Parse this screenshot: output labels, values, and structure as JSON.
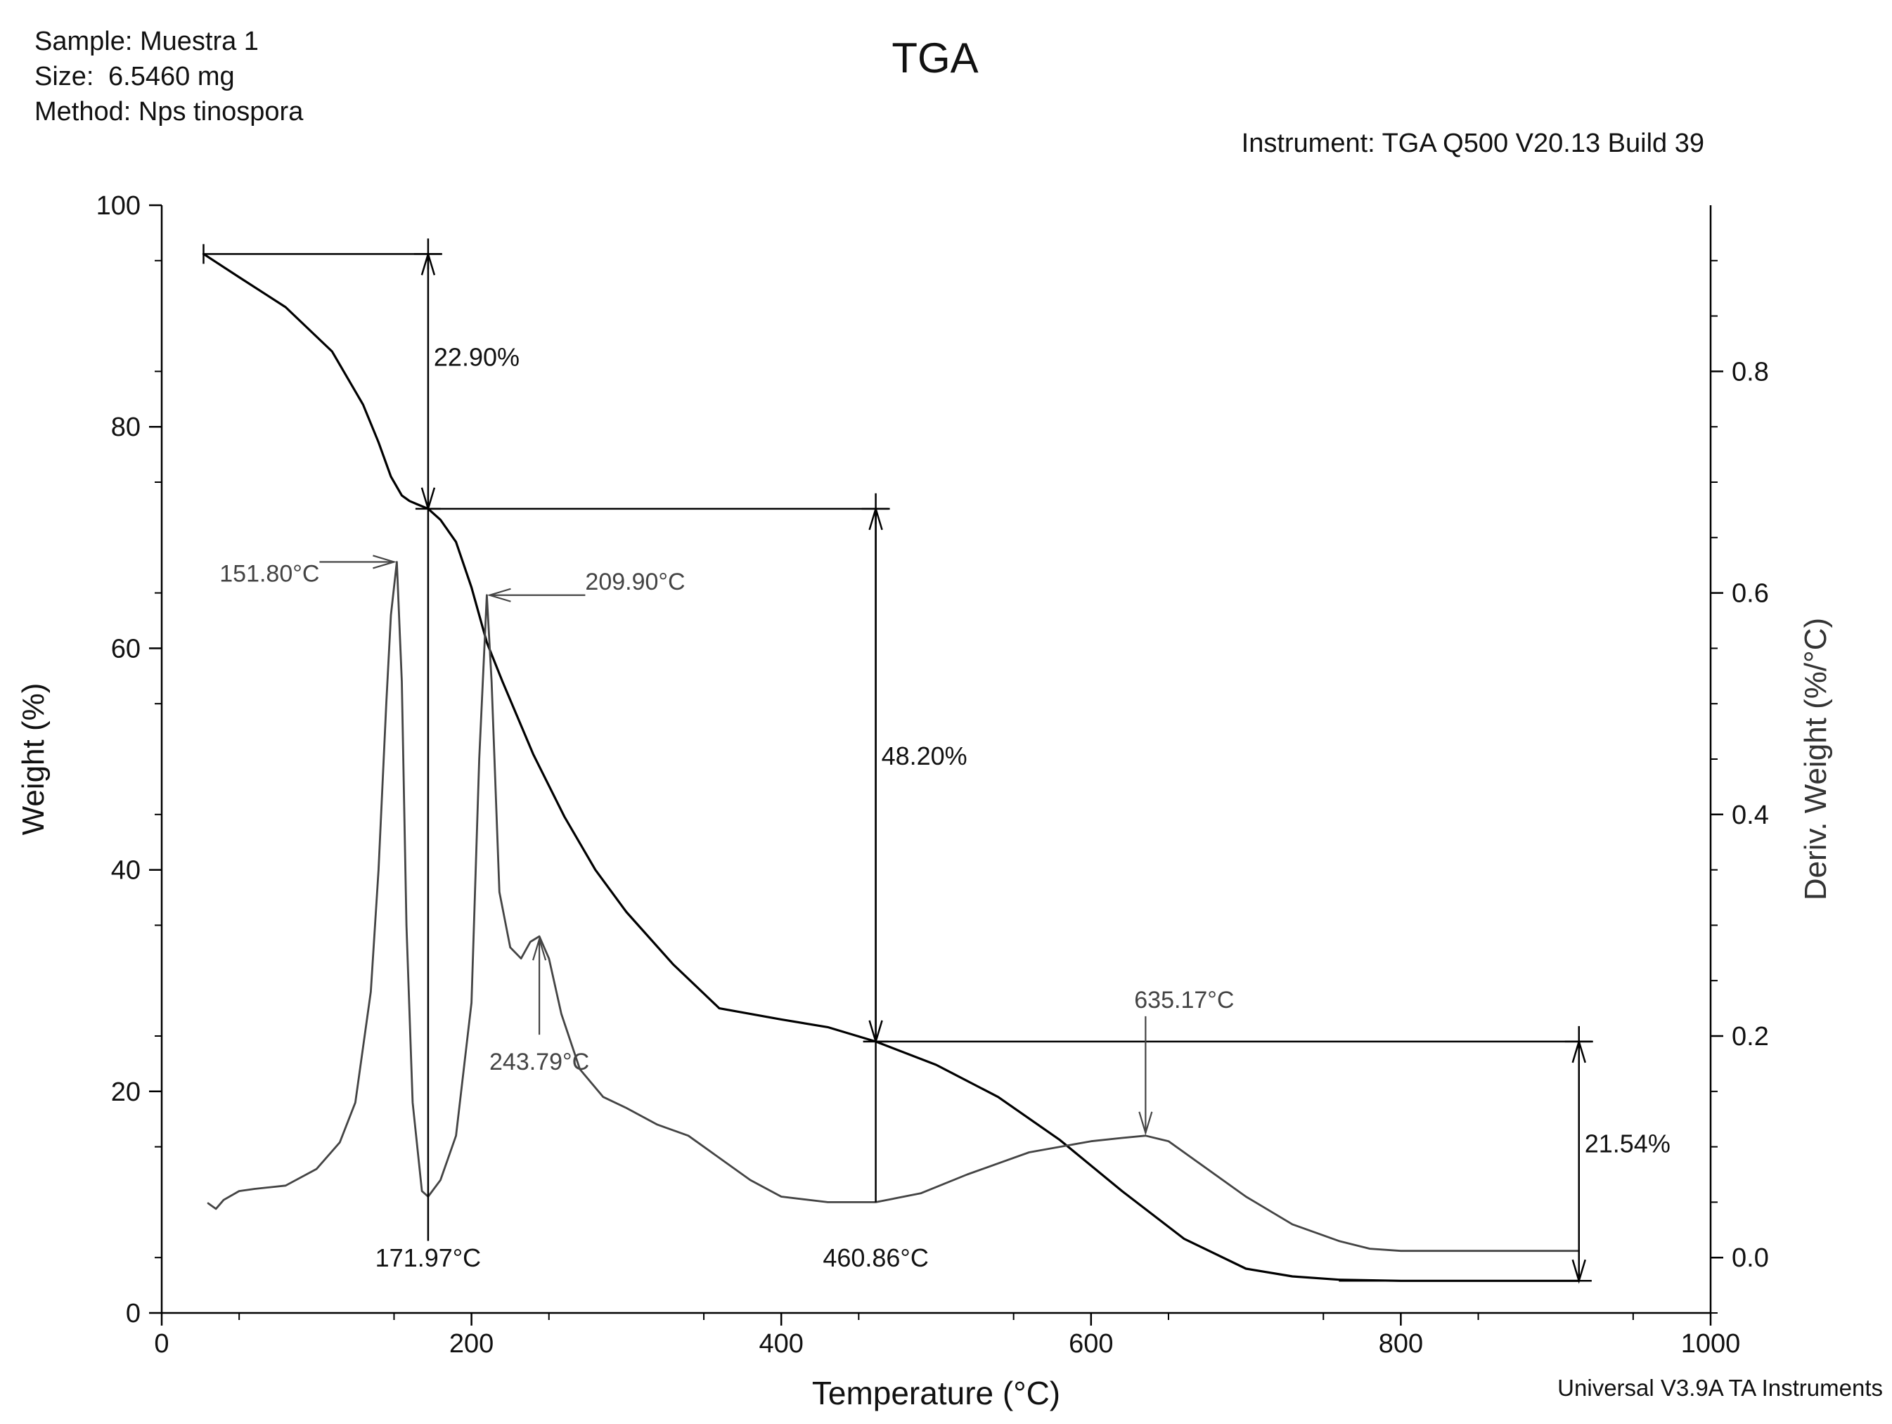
{
  "header": {
    "sample_label": "Sample:",
    "sample_value": "Muestra 1",
    "size_label": "Size:",
    "size_value": "6.5460 mg",
    "method_label": "Method:",
    "method_value": "Nps tinospora",
    "instrument": "Instrument: TGA Q500 V20.13 Build 39",
    "footer": "Universal V3.9A TA Instruments"
  },
  "chart_data": {
    "type": "line",
    "title": "TGA",
    "xlabel": "Temperature (°C)",
    "ylabel": "Weight (%)",
    "y2label": "Deriv. Weight (%/°C)",
    "xlim": [
      0,
      1000
    ],
    "ylim": [
      0,
      100
    ],
    "y2lim": [
      -0.05,
      0.95
    ],
    "x_ticks": [
      0,
      200,
      400,
      600,
      800,
      1000
    ],
    "y_ticks": [
      0,
      20,
      40,
      60,
      80,
      100
    ],
    "y2_ticks": [
      0.0,
      0.2,
      0.4,
      0.6,
      0.8
    ],
    "x_tick_labels": [
      "0",
      "200",
      "400",
      "600",
      "800",
      "1000"
    ],
    "y_tick_labels": [
      "0",
      "20",
      "40",
      "60",
      "80",
      "100"
    ],
    "y2_tick_labels": [
      "0.0",
      "0.2",
      "0.4",
      "0.6",
      "0.8"
    ],
    "grid": false,
    "series": [
      {
        "name": "Weight",
        "axis": "left",
        "color": "#000000",
        "x": [
          27,
          50,
          80,
          110,
          130,
          140,
          148,
          155,
          160,
          165,
          172,
          180,
          190,
          200,
          210,
          220,
          240,
          260,
          280,
          300,
          330,
          360,
          400,
          430,
          461,
          500,
          540,
          580,
          620,
          660,
          700,
          730,
          760,
          800,
          860,
          915
        ],
        "y": [
          95.6,
          93.5,
          90.8,
          86.8,
          82.0,
          78.6,
          75.5,
          73.8,
          73.3,
          73.0,
          72.6,
          71.6,
          69.6,
          65.5,
          60.5,
          57.0,
          50.4,
          44.8,
          40.0,
          36.2,
          31.5,
          27.5,
          26.5,
          25.8,
          24.5,
          22.4,
          19.5,
          15.6,
          11.0,
          6.7,
          4.0,
          3.3,
          3.0,
          2.9,
          2.9,
          2.9
        ]
      },
      {
        "name": "Deriv. Weight",
        "axis": "right",
        "color": "#444444",
        "x": [
          30,
          35,
          40,
          50,
          60,
          80,
          100,
          115,
          125,
          135,
          140,
          145,
          148,
          151.8,
          155,
          158,
          162,
          168,
          172,
          180,
          190,
          200,
          205,
          209.9,
          213,
          218,
          225,
          232,
          238,
          243.8,
          250,
          258,
          270,
          285,
          300,
          320,
          340,
          360,
          380,
          400,
          430,
          461,
          490,
          520,
          560,
          600,
          620,
          635.2,
          650,
          670,
          700,
          730,
          760,
          780,
          800,
          840,
          880,
          915
        ],
        "y": [
          0.049,
          0.044,
          0.052,
          0.06,
          0.062,
          0.065,
          0.08,
          0.104,
          0.14,
          0.24,
          0.35,
          0.5,
          0.58,
          0.628,
          0.52,
          0.3,
          0.14,
          0.06,
          0.055,
          0.07,
          0.11,
          0.23,
          0.45,
          0.598,
          0.52,
          0.33,
          0.28,
          0.27,
          0.285,
          0.29,
          0.27,
          0.22,
          0.17,
          0.145,
          0.135,
          0.12,
          0.11,
          0.09,
          0.07,
          0.055,
          0.05,
          0.05,
          0.058,
          0.075,
          0.095,
          0.105,
          0.108,
          0.11,
          0.105,
          0.085,
          0.055,
          0.03,
          0.015,
          0.008,
          0.006,
          0.006,
          0.006,
          0.006
        ]
      }
    ],
    "annotations": {
      "steps": [
        {
          "x_start": 27,
          "x_end": 172,
          "y_top": 95.6,
          "y_bottom": 72.6,
          "label": "22.90%"
        },
        {
          "x_start": 172,
          "x_end": 461,
          "y_top": 72.6,
          "y_bottom": 24.5,
          "label": "48.20%"
        },
        {
          "x_start": 461,
          "x_end": 915,
          "y_top": 24.5,
          "y_bottom": 2.9,
          "label": "21.54%"
        }
      ],
      "onsets": [
        {
          "x": 172,
          "label": "171.97°C"
        },
        {
          "x": 461,
          "label": "460.86°C"
        }
      ],
      "peaks": [
        {
          "x": 151.8,
          "y": 0.628,
          "label": "151.80°C"
        },
        {
          "x": 209.9,
          "y": 0.598,
          "label": "209.90°C"
        },
        {
          "x": 243.8,
          "y": 0.29,
          "label": "243.79°C"
        },
        {
          "x": 635.2,
          "y": 0.11,
          "label": "635.17°C"
        }
      ]
    }
  }
}
